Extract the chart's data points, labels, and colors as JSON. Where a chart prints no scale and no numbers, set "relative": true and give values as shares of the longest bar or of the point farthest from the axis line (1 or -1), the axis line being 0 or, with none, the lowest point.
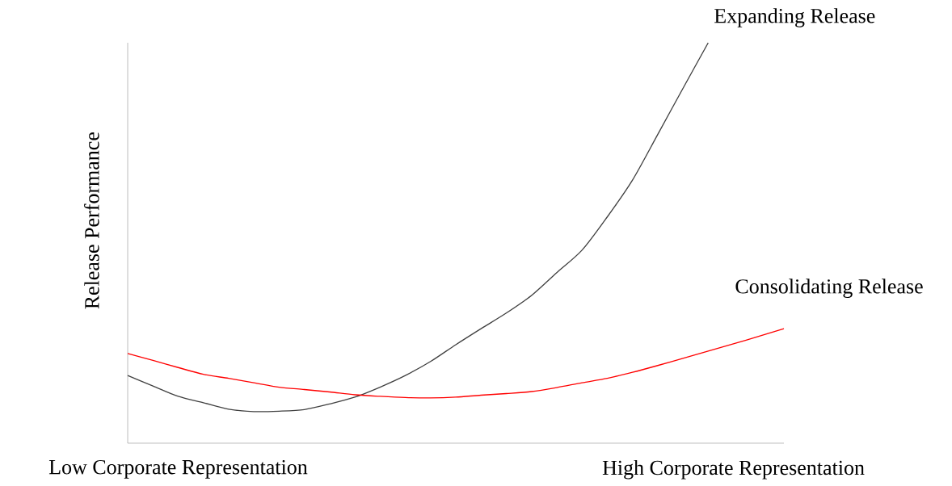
{
  "chart_data": {
    "type": "line",
    "relative": true,
    "ylabel": "Release Performance",
    "categories": [
      null,
      null,
      "Low Corporate Representation",
      null,
      null,
      null,
      null,
      null,
      null,
      null,
      null,
      null,
      null,
      null,
      null,
      null,
      null,
      null,
      null,
      null,
      null,
      null,
      null,
      null,
      "High Corporate Representation",
      null,
      null
    ],
    "legend": false,
    "grid": false,
    "marker": "none",
    "line_style": "solid",
    "series": [
      {
        "name": "Expanding Release",
        "color": "#404040",
        "values": [
          0.169,
          0.143,
          0.117,
          0.101,
          0.085,
          0.079,
          0.08,
          0.084,
          0.098,
          0.115,
          0.14,
          0.169,
          0.204,
          0.246,
          0.286,
          0.325,
          0.369,
          0.426,
          0.482,
          0.565,
          0.657,
          0.771,
          0.886,
          1.0,
          null,
          null,
          null
        ]
      },
      {
        "name": "Consolidating Release",
        "color": "#ff0000",
        "values": [
          0.224,
          0.207,
          0.189,
          0.172,
          0.162,
          0.151,
          0.14,
          0.134,
          0.128,
          0.121,
          0.117,
          0.114,
          0.113,
          0.115,
          0.12,
          0.124,
          0.129,
          0.139,
          0.151,
          0.162,
          0.177,
          0.194,
          0.212,
          0.23,
          0.248,
          0.267,
          0.286
        ]
      }
    ]
  }
}
